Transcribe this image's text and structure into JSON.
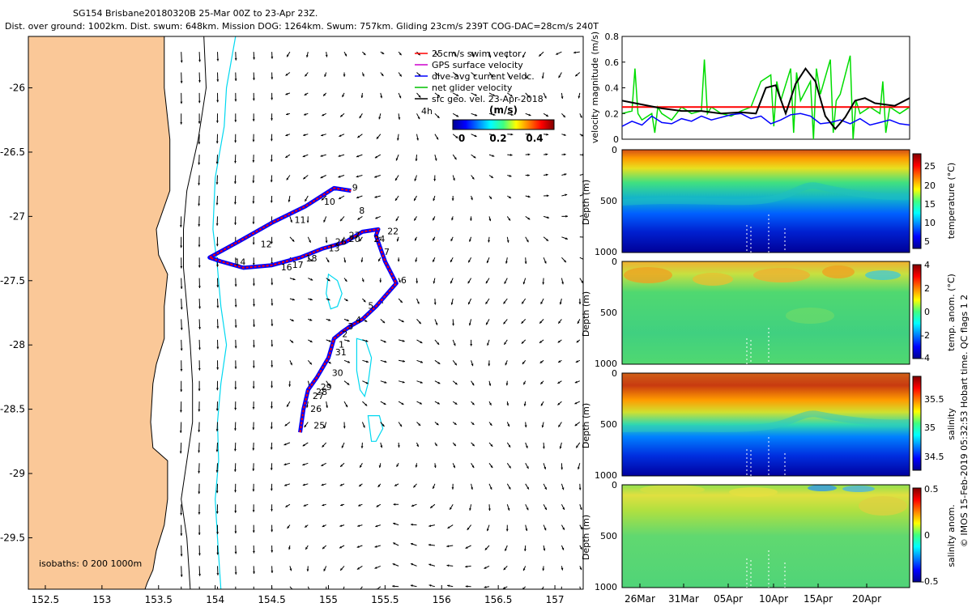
{
  "header": {
    "line1": "SG154 Brisbane20180320B 25-Mar 00Z to 23-Apr 23Z.",
    "line2": "Dist. over ground: 1002km. Dist. swum: 648km. Mission DOG: 1264km. Swum: 757km. Gliding 23cm/s 239T COG-DAC=28cm/s 240T"
  },
  "side_note": "© IMOS 15-Feb-2019 05:32:53 Hobart time. QC flags 1  2",
  "chart_data": [
    {
      "type": "map",
      "name": "glider track and current vectors",
      "xlim": [
        152.35,
        157.25
      ],
      "ylim": [
        -29.9,
        -25.6
      ],
      "xticks": [
        152.5,
        153,
        153.5,
        154,
        154.5,
        155,
        155.5,
        156,
        156.5,
        157
      ],
      "xtick_labels": [
        "152.5",
        "153",
        "153.5",
        "154",
        "154.5",
        "155",
        "155.5",
        "156",
        "156.5",
        "157"
      ],
      "yticks": [
        -26,
        -26.5,
        -27,
        -27.5,
        -28,
        -28.5,
        -29,
        -29.5
      ],
      "ytick_labels": [
        "-26",
        "-26.5",
        "-27",
        "-27.5",
        "-28",
        "-28.5",
        "-29",
        "-29.5"
      ],
      "legend": {
        "position": "top-right",
        "entries": [
          {
            "label": "25cm/s swim vector",
            "color": "#ff0000"
          },
          {
            "label": "GPS surface velocity",
            "color": "#cc00cc"
          },
          {
            "label": "dive-avg current veloc.",
            "color": "#0000ff"
          },
          {
            "label": "net glider velocity",
            "color": "#00c000"
          },
          {
            "label": "sfc geo. vel. 23-Apr-2018",
            "color": "#000000"
          }
        ],
        "extra_label": "4h"
      },
      "colorbar": {
        "title": "(m/s)",
        "tick_labels": [
          "0",
          "0.2",
          "0.4"
        ],
        "range": [
          0,
          0.5
        ]
      },
      "isobaths_label": "isobaths: 0   200  1000m",
      "coast_lon": [
        153.55,
        153.55,
        153.6,
        153.6,
        153.48,
        153.5,
        153.58,
        153.55,
        153.55,
        153.48,
        153.45,
        153.43,
        153.45,
        153.58,
        153.58,
        153.55,
        153.48,
        153.45,
        153.4,
        153.38
      ],
      "coast_lat": [
        -25.6,
        -26.0,
        -26.4,
        -26.8,
        -27.1,
        -27.3,
        -27.45,
        -27.7,
        -27.95,
        -28.15,
        -28.3,
        -28.6,
        -28.8,
        -28.9,
        -29.2,
        -29.4,
        -29.6,
        -29.75,
        -29.85,
        -29.9
      ],
      "isobath200_lon": [
        153.9,
        153.92,
        153.85,
        153.75,
        153.72,
        153.72,
        153.75,
        153.78,
        153.8,
        153.8,
        153.75,
        153.7,
        153.75,
        153.78
      ],
      "isobath200_lat": [
        -25.6,
        -26.0,
        -26.4,
        -26.8,
        -27.1,
        -27.4,
        -27.7,
        -28.0,
        -28.3,
        -28.6,
        -28.9,
        -29.2,
        -29.5,
        -29.9
      ],
      "isobath1000_lon": [
        154.18,
        154.1,
        154.08,
        154.0,
        153.98,
        154.02,
        154.05,
        154.1,
        154.05,
        154.02,
        154.03,
        154.0,
        154.02,
        154.05
      ],
      "isobath1000_lat": [
        -25.6,
        -26.0,
        -26.3,
        -26.7,
        -27.1,
        -27.4,
        -27.7,
        -28.0,
        -28.3,
        -28.6,
        -28.9,
        -29.2,
        -29.5,
        -29.9
      ],
      "seamounts": [
        {
          "lon": [
            155.0,
            155.08,
            155.12,
            155.08,
            155.02,
            154.98,
            155.0
          ],
          "lat": [
            -27.45,
            -27.5,
            -27.6,
            -27.7,
            -27.72,
            -27.6,
            -27.45
          ]
        },
        {
          "lon": [
            155.25,
            155.33,
            155.38,
            155.35,
            155.32,
            155.28,
            155.25,
            155.25
          ],
          "lat": [
            -27.95,
            -27.97,
            -28.1,
            -28.3,
            -28.4,
            -28.35,
            -28.2,
            -27.95
          ]
        },
        {
          "lon": [
            155.35,
            155.45,
            155.48,
            155.42,
            155.38,
            155.35
          ],
          "lat": [
            -28.55,
            -28.55,
            -28.65,
            -28.75,
            -28.75,
            -28.55
          ]
        }
      ],
      "track": {
        "lon": [
          154.75,
          154.78,
          154.82,
          154.9,
          155.0,
          155.05,
          155.12,
          155.2,
          155.3,
          155.42,
          155.6,
          155.5,
          155.42,
          155.44,
          155.3,
          155.15,
          154.95,
          154.75,
          154.5,
          154.25,
          154.05,
          153.95,
          154.2,
          154.5,
          154.8,
          155.05,
          155.2
        ],
        "lat": [
          -28.68,
          -28.5,
          -28.35,
          -28.25,
          -28.1,
          -27.95,
          -27.9,
          -27.85,
          -27.8,
          -27.7,
          -27.52,
          -27.35,
          -27.15,
          -27.1,
          -27.12,
          -27.2,
          -27.25,
          -27.32,
          -27.38,
          -27.4,
          -27.35,
          -27.32,
          -27.2,
          -27.05,
          -26.92,
          -26.78,
          -26.8
        ]
      },
      "waypoints": [
        {
          "label": "25",
          "lon": 154.87,
          "lat": -28.65
        },
        {
          "label": "26",
          "lon": 154.84,
          "lat": -28.52
        },
        {
          "label": "27",
          "lon": 154.86,
          "lat": -28.42
        },
        {
          "label": "28",
          "lon": 154.89,
          "lat": -28.39
        },
        {
          "label": "29",
          "lon": 154.93,
          "lat": -28.35
        },
        {
          "label": "30",
          "lon": 155.03,
          "lat": -28.24
        },
        {
          "label": "31",
          "lon": 155.06,
          "lat": -28.08
        },
        {
          "label": "1",
          "lon": 155.09,
          "lat": -28.02
        },
        {
          "label": "2",
          "lon": 155.12,
          "lat": -27.94
        },
        {
          "label": "3",
          "lon": 155.17,
          "lat": -27.88
        },
        {
          "label": "4",
          "lon": 155.24,
          "lat": -27.83
        },
        {
          "label": "5",
          "lon": 155.35,
          "lat": -27.72
        },
        {
          "label": "6",
          "lon": 155.64,
          "lat": -27.52
        },
        {
          "label": "7",
          "lon": 155.49,
          "lat": -27.3
        },
        {
          "label": "8",
          "lon": 155.27,
          "lat": -26.98
        },
        {
          "label": "9",
          "lon": 155.21,
          "lat": -26.8
        },
        {
          "label": "10",
          "lon": 154.96,
          "lat": -26.91
        },
        {
          "label": "11",
          "lon": 154.7,
          "lat": -27.05
        },
        {
          "label": "12",
          "lon": 154.4,
          "lat": -27.24
        },
        {
          "label": "13",
          "lon": 155.0,
          "lat": -27.27
        },
        {
          "label": "14",
          "lon": 154.17,
          "lat": -27.38
        },
        {
          "label": "16",
          "lon": 154.58,
          "lat": -27.42
        },
        {
          "label": "17",
          "lon": 154.68,
          "lat": -27.4
        },
        {
          "label": "18",
          "lon": 154.8,
          "lat": -27.35
        },
        {
          "label": "20",
          "lon": 155.18,
          "lat": -27.2
        },
        {
          "label": "22",
          "lon": 155.52,
          "lat": -27.14
        },
        {
          "label": "24",
          "lon": 155.4,
          "lat": -27.2
        },
        {
          "label": "26",
          "lon": 155.06,
          "lat": -27.22
        },
        {
          "label": "27",
          "lon": 155.18,
          "lat": -27.17
        }
      ]
    },
    {
      "type": "line",
      "name": "velocity magnitude",
      "ylabel": "velocity magnitude (m/s)",
      "ylim": [
        0,
        0.8
      ],
      "yticks": [
        0,
        0.2,
        0.4,
        0.6,
        0.8
      ],
      "ytick_labels": [
        "0",
        "0.2",
        "0.4",
        "0.6",
        "0.8"
      ],
      "xlim": [
        0,
        29
      ],
      "series": [
        {
          "name": "red",
          "color": "#ff0000",
          "x": [
            0,
            29
          ],
          "values": [
            0.25,
            0.25
          ]
        },
        {
          "name": "black",
          "color": "#000000",
          "x": [
            0,
            2,
            4,
            6,
            8,
            10,
            12,
            13.5,
            14.5,
            15.5,
            16.5,
            17.5,
            18.5,
            19.5,
            20.5,
            21.5,
            22.5,
            23.5,
            24.5,
            25.5,
            26.5,
            27.5,
            29
          ],
          "values": [
            0.3,
            0.27,
            0.24,
            0.22,
            0.22,
            0.2,
            0.21,
            0.2,
            0.4,
            0.42,
            0.2,
            0.43,
            0.55,
            0.45,
            0.18,
            0.08,
            0.17,
            0.3,
            0.32,
            0.28,
            0.27,
            0.26,
            0.32
          ]
        },
        {
          "name": "blue",
          "color": "#0000ff",
          "x": [
            0,
            1,
            2,
            3,
            4,
            5,
            6,
            7,
            8,
            9,
            10,
            11,
            12,
            13,
            14,
            15,
            16,
            17,
            18,
            19,
            20,
            21,
            22,
            23,
            24,
            25,
            26,
            27,
            28,
            29
          ],
          "values": [
            0.1,
            0.14,
            0.11,
            0.18,
            0.13,
            0.12,
            0.16,
            0.14,
            0.18,
            0.15,
            0.17,
            0.19,
            0.2,
            0.16,
            0.18,
            0.12,
            0.15,
            0.19,
            0.2,
            0.18,
            0.12,
            0.13,
            0.15,
            0.12,
            0.16,
            0.11,
            0.13,
            0.15,
            0.12,
            0.11
          ]
        },
        {
          "name": "green",
          "color": "#00dd00",
          "x": [
            0,
            1,
            1.3,
            1.6,
            2,
            3,
            3.3,
            3.6,
            4,
            5,
            6,
            7,
            8,
            8.3,
            8.6,
            9,
            10,
            11,
            12,
            13,
            14,
            15,
            15.3,
            15.6,
            16,
            17,
            17.3,
            17.6,
            18,
            19,
            19.3,
            19.6,
            20,
            21,
            21.3,
            21.6,
            22,
            23,
            23.3,
            23.6,
            24,
            25,
            26,
            26.3,
            26.6,
            27,
            28,
            29
          ],
          "values": [
            0.2,
            0.22,
            0.55,
            0.2,
            0.15,
            0.2,
            0.05,
            0.25,
            0.2,
            0.15,
            0.25,
            0.2,
            0.22,
            0.62,
            0.2,
            0.25,
            0.2,
            0.18,
            0.22,
            0.25,
            0.45,
            0.5,
            0.1,
            0.45,
            0.3,
            0.55,
            0.05,
            0.52,
            0.3,
            0.45,
            0.0,
            0.55,
            0.35,
            0.62,
            0.05,
            0.3,
            0.35,
            0.65,
            0.0,
            0.3,
            0.2,
            0.25,
            0.2,
            0.45,
            0.05,
            0.25,
            0.2,
            0.25
          ]
        }
      ]
    },
    {
      "type": "heatmap",
      "name": "temperature section",
      "ylabel": "Depth (m)",
      "ylim": [
        1000,
        0
      ],
      "ytick_labels": [
        "0",
        "500",
        "1000"
      ],
      "colorbar_label": "temperature (°C)",
      "colorbar_ticks": [
        "25",
        "20",
        "15",
        "10",
        "5"
      ],
      "colorbar_range": [
        4,
        28
      ]
    },
    {
      "type": "heatmap",
      "name": "temperature anomaly section",
      "ylabel": "Depth (m)",
      "ylim": [
        1000,
        0
      ],
      "ytick_labels": [
        "0",
        "500",
        "1000"
      ],
      "colorbar_label": "temp. anom. (°C)",
      "colorbar_ticks": [
        "4",
        "2",
        "0",
        "-2",
        "-4"
      ],
      "colorbar_range": [
        -4,
        4
      ]
    },
    {
      "type": "heatmap",
      "name": "salinity section",
      "ylabel": "Depth (m)",
      "ylim": [
        1000,
        0
      ],
      "ytick_labels": [
        "0",
        "500",
        "1000"
      ],
      "colorbar_label": "salinity",
      "colorbar_ticks": [
        "35.5",
        "35",
        "34.5"
      ],
      "colorbar_range": [
        34.3,
        35.7
      ]
    },
    {
      "type": "heatmap",
      "name": "salinity anomaly section",
      "ylabel": "Depth (m)",
      "ylim": [
        1000,
        0
      ],
      "ytick_labels": [
        "0",
        "500",
        "1000"
      ],
      "colorbar_label": "salinity anom.",
      "colorbar_ticks": [
        "0.5",
        "0",
        "-0.5"
      ],
      "colorbar_range": [
        -0.5,
        0.5
      ],
      "xtick_labels": [
        "26Mar",
        "31Mar",
        "05Apr",
        "10Apr",
        "15Apr",
        "20Apr"
      ]
    }
  ]
}
